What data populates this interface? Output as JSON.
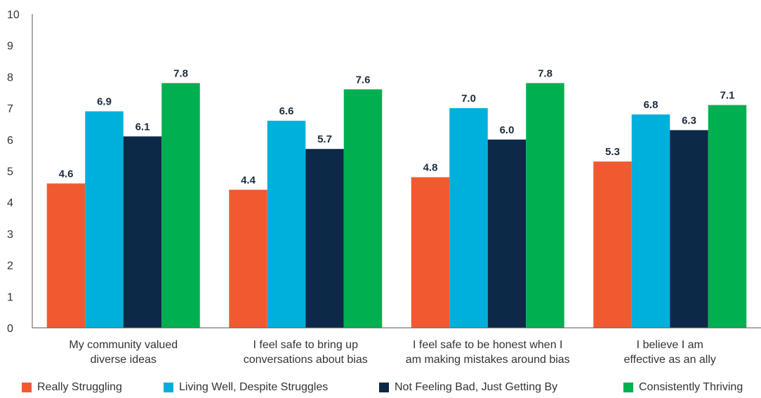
{
  "chart_data": {
    "type": "bar",
    "categories": [
      [
        "My community valued",
        "diverse ideas"
      ],
      [
        "I feel safe to bring up",
        "conversations about bias"
      ],
      [
        "I feel safe to be honest when I",
        "am making mistakes around bias"
      ],
      [
        "I believe I am",
        "effective as an ally"
      ]
    ],
    "series": [
      {
        "name": "Really Struggling",
        "color": "#f15a31",
        "values": [
          4.6,
          4.4,
          4.8,
          5.3
        ],
        "labels": [
          "4.6",
          "4.4",
          "4.8",
          "5.3"
        ]
      },
      {
        "name": "Living Well, Despite Struggles",
        "color": "#00b0dc",
        "values": [
          6.9,
          6.6,
          7.0,
          6.8
        ],
        "labels": [
          "6.9",
          "6.6",
          "7.0",
          "6.8"
        ]
      },
      {
        "name": "Not Feeling Bad, Just Getting By",
        "color": "#0c2a47",
        "values": [
          6.1,
          5.7,
          6.0,
          6.3
        ],
        "labels": [
          "6.1",
          "5.7",
          "6.0",
          "6.3"
        ]
      },
      {
        "name": "Consistently Thriving",
        "color": "#00b050",
        "values": [
          7.8,
          7.6,
          7.8,
          7.1
        ],
        "labels": [
          "7.8",
          "7.6",
          "7.8",
          "7.1"
        ]
      }
    ],
    "yticks": [
      "0",
      "1",
      "2",
      "3",
      "4",
      "5",
      "6",
      "7",
      "8",
      "9",
      "10"
    ],
    "ylim": [
      0,
      10
    ],
    "grid": false,
    "legend_position": "bottom"
  }
}
